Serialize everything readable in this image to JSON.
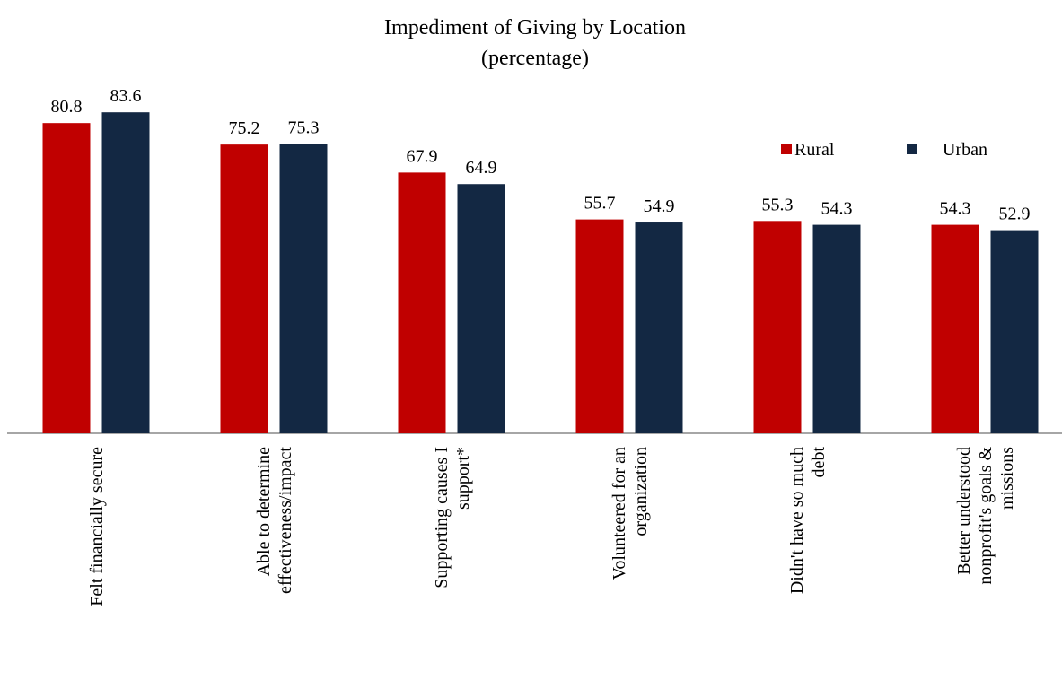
{
  "chart_data": {
    "type": "bar",
    "title": "Impediment of Giving by Location",
    "subtitle": "(percentage)",
    "categories": [
      "Felt financially secure",
      "Able to determine effectiveness/impact",
      "Supporting causes I support*",
      "Volunteered for an organization",
      "Didn't have so much debt",
      "Better understood nonprofit's goals & missions"
    ],
    "series": [
      {
        "name": "Rural",
        "color": "#c00000",
        "values": [
          80.8,
          75.2,
          67.9,
          55.7,
          55.3,
          54.3
        ]
      },
      {
        "name": "Urban",
        "color": "#132843",
        "values": [
          83.6,
          75.3,
          64.9,
          54.9,
          54.3,
          52.9
        ]
      }
    ],
    "ylim": [
      0,
      100
    ],
    "legend": "top-right"
  }
}
